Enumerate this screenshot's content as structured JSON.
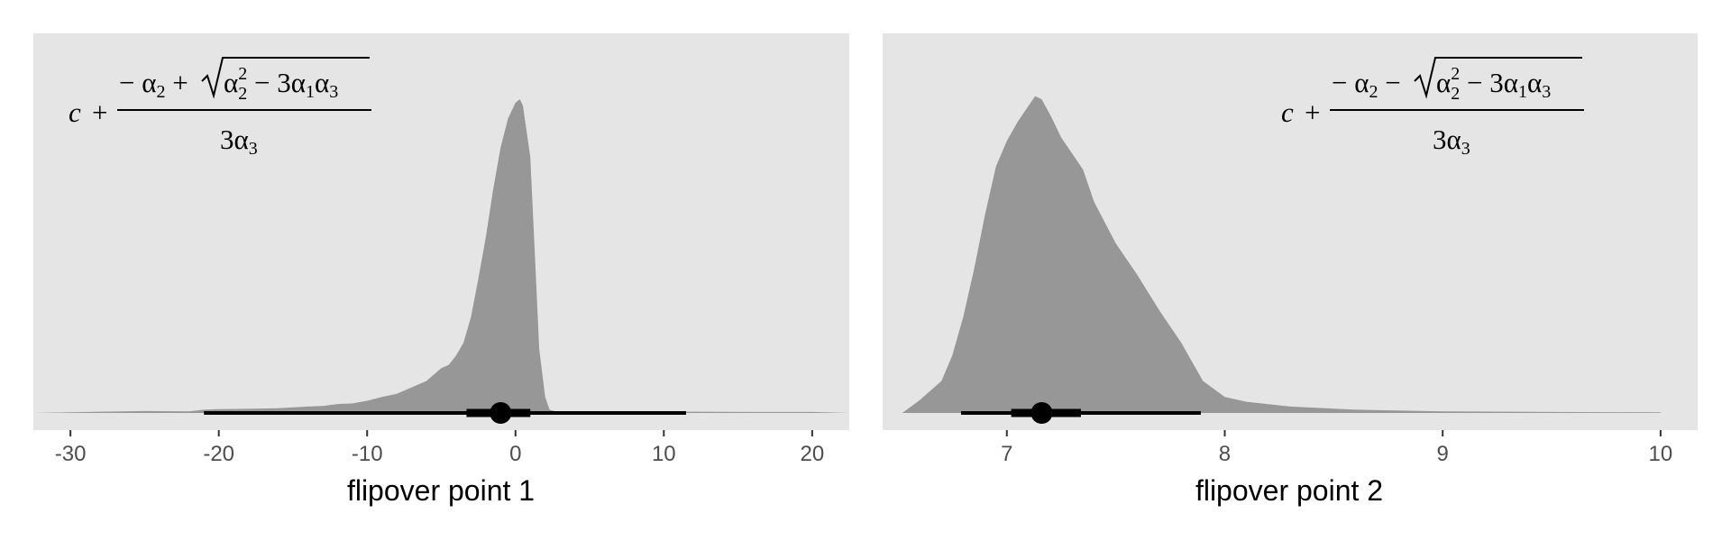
{
  "chart_data": [
    {
      "type": "area",
      "subtype": "density with point interval",
      "xlabel": "flipover point 1",
      "xlim": [
        -32.5,
        22.5
      ],
      "xticks": [
        -30,
        -20,
        -10,
        0,
        10,
        20
      ],
      "tick_labels": [
        "-30",
        "-20",
        "-10",
        "0",
        "10",
        "20"
      ],
      "annotation": "c + (− α2 + √(α2² − 3α1α3)) / 3α3",
      "annotation_sign": "+",
      "annotation_position": "top-left",
      "density_x": [
        -32.5,
        -28,
        -25,
        -22,
        -21,
        -20,
        -18,
        -16,
        -14,
        -13,
        -12,
        -11,
        -10,
        -9,
        -8,
        -7,
        -6,
        -5,
        -4.5,
        -4,
        -3.5,
        -3,
        -2.5,
        -2,
        -1.5,
        -1,
        -0.5,
        0,
        0.3,
        0.5,
        1,
        1.3,
        1.6,
        2,
        2.3,
        2.8,
        4,
        8,
        12,
        16,
        20,
        22.5
      ],
      "density_y": [
        0.0,
        0.004,
        0.006,
        0.005,
        0.01,
        0.012,
        0.013,
        0.015,
        0.02,
        0.022,
        0.028,
        0.03,
        0.038,
        0.05,
        0.06,
        0.08,
        0.1,
        0.14,
        0.15,
        0.18,
        0.22,
        0.3,
        0.42,
        0.55,
        0.7,
        0.83,
        0.92,
        0.97,
        0.98,
        0.96,
        0.8,
        0.5,
        0.2,
        0.05,
        0.01,
        0.004,
        0.003,
        0.004,
        0.004,
        0.003,
        0.003,
        0.0
      ],
      "point": -1.0,
      "interval_inner": [
        -3.3,
        1.0
      ],
      "interval_outer": [
        -21.0,
        11.5
      ]
    },
    {
      "type": "area",
      "subtype": "density with point interval",
      "xlabel": "flipover point 2",
      "xlim": [
        6.43,
        10.17
      ],
      "xticks": [
        7,
        8,
        9,
        10
      ],
      "tick_labels": [
        "7",
        "8",
        "9",
        "10"
      ],
      "annotation": "c + (− α2 − √(α2² − 3α1α3)) / 3α3",
      "annotation_sign": "−",
      "annotation_position": "top-right",
      "density_x": [
        6.52,
        6.6,
        6.7,
        6.75,
        6.8,
        6.85,
        6.9,
        6.95,
        7.0,
        7.05,
        7.1,
        7.13,
        7.16,
        7.2,
        7.25,
        7.3,
        7.35,
        7.4,
        7.5,
        7.6,
        7.7,
        7.8,
        7.85,
        7.9,
        8.0,
        8.1,
        8.3,
        8.6,
        9.0,
        9.5,
        10.0
      ],
      "density_y": [
        0.0,
        0.04,
        0.1,
        0.18,
        0.3,
        0.45,
        0.62,
        0.77,
        0.85,
        0.91,
        0.96,
        0.99,
        0.98,
        0.93,
        0.86,
        0.81,
        0.76,
        0.66,
        0.53,
        0.43,
        0.32,
        0.22,
        0.16,
        0.1,
        0.05,
        0.035,
        0.02,
        0.01,
        0.005,
        0.003,
        0.002
      ],
      "point": 7.16,
      "interval_inner": [
        7.02,
        7.34
      ],
      "interval_outer": [
        6.79,
        7.89
      ]
    }
  ]
}
